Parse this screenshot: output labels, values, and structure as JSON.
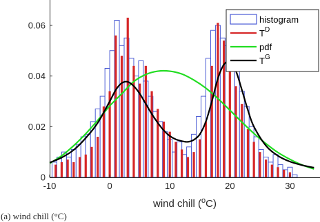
{
  "chart_data": {
    "type": "bar",
    "xlabel": "wind chill (",
    "xlabel_unit": "C)",
    "xlabel_degree": "o",
    "xlim": [
      -10,
      35
    ],
    "ylim": [
      0,
      0.07
    ],
    "xticks": [
      -10,
      0,
      10,
      20,
      30
    ],
    "xtick_labels": [
      "-10",
      "0",
      "10",
      "20",
      "30"
    ],
    "yticks": [
      0,
      0.02,
      0.04,
      0.06
    ],
    "ytick_labels": [
      "0",
      "0.02",
      "0.04",
      "0.06"
    ],
    "grid": false,
    "legend_position": "top-right",
    "legend": [
      {
        "label": "histogram",
        "color": "#4a5bd4",
        "style": "box"
      },
      {
        "label": "T",
        "superscript": "D",
        "color": "#d62728",
        "style": "line"
      },
      {
        "label": "pdf",
        "superscript": "",
        "color": "#22dd22",
        "style": "line"
      },
      {
        "label": "T",
        "superscript": "G",
        "color": "#000000",
        "style": "line"
      }
    ],
    "histogram": {
      "name": "histogram",
      "color": "#4a5bd4",
      "bin_width": 0.8,
      "bins": [
        [
          -9.6,
          0.006
        ],
        [
          -8.8,
          0.008
        ],
        [
          -8.0,
          0.01
        ],
        [
          -7.2,
          0.008
        ],
        [
          -6.4,
          0.011
        ],
        [
          -5.6,
          0.013
        ],
        [
          -4.8,
          0.016
        ],
        [
          -4.0,
          0.017
        ],
        [
          -3.2,
          0.022
        ],
        [
          -2.4,
          0.027
        ],
        [
          -1.6,
          0.032
        ],
        [
          -0.8,
          0.043
        ],
        [
          0.0,
          0.05
        ],
        [
          0.8,
          0.062
        ],
        [
          1.6,
          0.052
        ],
        [
          2.4,
          0.055
        ],
        [
          3.2,
          0.047
        ],
        [
          4.0,
          0.04
        ],
        [
          4.8,
          0.046
        ],
        [
          5.6,
          0.038
        ],
        [
          6.4,
          0.032
        ],
        [
          7.2,
          0.026
        ],
        [
          8.0,
          0.022
        ],
        [
          8.8,
          0.018
        ],
        [
          9.6,
          0.015
        ],
        [
          10.4,
          0.01
        ],
        [
          11.2,
          0.014
        ],
        [
          12.0,
          0.009
        ],
        [
          12.8,
          0.012
        ],
        [
          13.6,
          0.017
        ],
        [
          14.4,
          0.024
        ],
        [
          15.2,
          0.032
        ],
        [
          16.0,
          0.047
        ],
        [
          16.8,
          0.058
        ],
        [
          17.6,
          0.06
        ],
        [
          18.4,
          0.055
        ],
        [
          19.2,
          0.052
        ],
        [
          20.0,
          0.048
        ],
        [
          20.8,
          0.042
        ],
        [
          21.6,
          0.034
        ],
        [
          22.4,
          0.028
        ],
        [
          23.2,
          0.02
        ],
        [
          24.0,
          0.016
        ],
        [
          24.8,
          0.011
        ],
        [
          25.6,
          0.008
        ],
        [
          26.4,
          0.006
        ],
        [
          27.2,
          0.009
        ],
        [
          28.0,
          0.005
        ],
        [
          28.8,
          0.003
        ],
        [
          29.6,
          0.004
        ],
        [
          30.4,
          0.001
        ]
      ]
    },
    "series": [
      {
        "name": "T",
        "superscript": "D",
        "type": "stem",
        "color": "#d62728",
        "x": [
          -9.0,
          -8.0,
          -7.0,
          -6.0,
          -5.0,
          -4.0,
          -3.0,
          -2.0,
          -1.0,
          0.0,
          1.0,
          2.0,
          3.0,
          4.0,
          5.0,
          6.0,
          7.0,
          8.0,
          9.0,
          10.0,
          11.0,
          12.0,
          13.0,
          14.0,
          15.0,
          16.0,
          17.0,
          18.0,
          19.0,
          20.0,
          21.0,
          22.0,
          23.0,
          24.0,
          25.0,
          26.0,
          27.0,
          28.0,
          29.0,
          30.0
        ],
        "y": [
          0.005,
          0.006,
          0.007,
          0.006,
          0.008,
          0.009,
          0.012,
          0.016,
          0.028,
          0.034,
          0.056,
          0.048,
          0.063,
          0.044,
          0.037,
          0.044,
          0.034,
          0.027,
          0.022,
          0.018,
          0.014,
          0.011,
          0.008,
          0.01,
          0.015,
          0.022,
          0.044,
          0.061,
          0.054,
          0.049,
          0.036,
          0.029,
          0.019,
          0.014,
          0.01,
          0.007,
          0.005,
          0.004,
          0.003,
          0.002
        ]
      },
      {
        "name": "pdf",
        "type": "line",
        "color": "#22dd22",
        "x": [
          -10,
          -8,
          -6,
          -4,
          -2,
          0,
          2,
          4,
          6,
          8,
          10,
          12,
          14,
          16,
          18,
          20,
          22,
          24,
          26,
          28,
          30,
          32,
          34
        ],
        "y": [
          0.0055,
          0.0085,
          0.0125,
          0.0172,
          0.0225,
          0.0282,
          0.033,
          0.0378,
          0.0406,
          0.0419,
          0.0419,
          0.0408,
          0.0384,
          0.0352,
          0.0311,
          0.0265,
          0.0218,
          0.0173,
          0.0133,
          0.0098,
          0.0071,
          0.0049,
          0.0033
        ]
      },
      {
        "name": "T",
        "superscript": "G",
        "type": "line",
        "color": "#000000",
        "x": [
          -10,
          -8,
          -6,
          -4,
          -2,
          0,
          1,
          2,
          3,
          4,
          5,
          6,
          7,
          8,
          9,
          10,
          11,
          12,
          13,
          14,
          15,
          16,
          17,
          18,
          19,
          20,
          21,
          22,
          23,
          24,
          26,
          28,
          30,
          32,
          34
        ],
        "y": [
          0.0058,
          0.0078,
          0.0108,
          0.0155,
          0.0215,
          0.03,
          0.0345,
          0.0372,
          0.0377,
          0.036,
          0.033,
          0.029,
          0.025,
          0.0215,
          0.0185,
          0.0163,
          0.015,
          0.0143,
          0.014,
          0.0148,
          0.017,
          0.022,
          0.03,
          0.039,
          0.0445,
          0.0455,
          0.042,
          0.0345,
          0.0265,
          0.02,
          0.0125,
          0.0085,
          0.0062,
          0.0048,
          0.0038
        ]
      }
    ]
  },
  "caption": "(a) wind chill (°C)"
}
